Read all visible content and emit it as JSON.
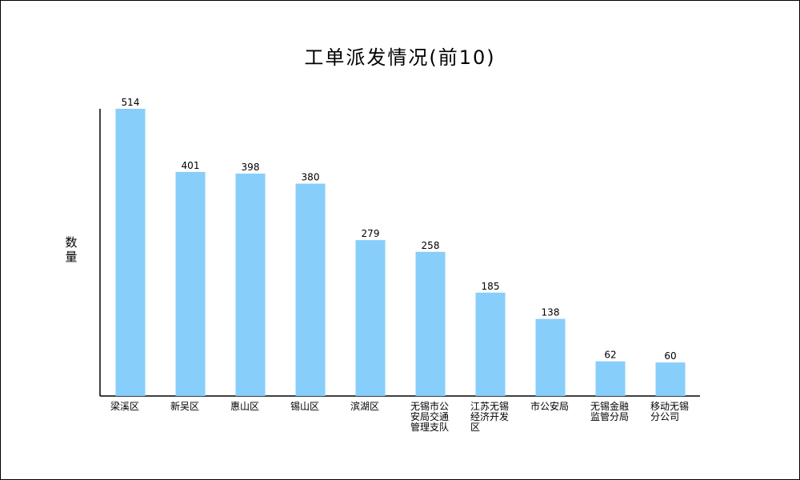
{
  "chart_data": {
    "type": "bar",
    "title": "工单派发情况(前10)",
    "xlabel": "",
    "ylabel": "数量",
    "categories": [
      "梁溪区",
      "新吴区",
      "惠山区",
      "锡山区",
      "滨湖区",
      "无锡市公安局交通管理支队",
      "江苏无锡经济开发区",
      "市公安局",
      "无锡金融监管分局",
      "移动无锡分公司"
    ],
    "values": [
      514,
      401,
      398,
      380,
      279,
      258,
      185,
      138,
      62,
      60
    ],
    "ylim": [
      0,
      514
    ],
    "grid": false,
    "legend": "none",
    "bar_color": "#87CEFA"
  }
}
